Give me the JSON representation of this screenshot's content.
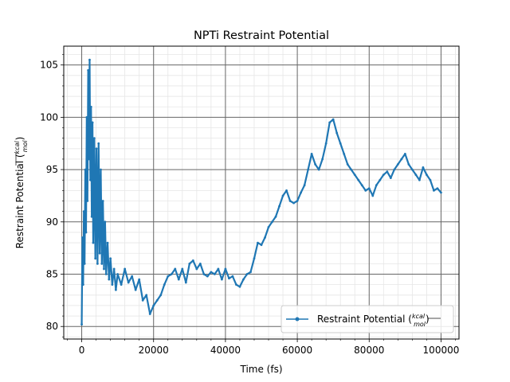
{
  "chart_data": {
    "type": "line",
    "title": "NPTi  Restraint Potential",
    "xlabel": "Time (fs)",
    "ylabel_main": "Restraint Potential (",
    "ylabel_num": "kcal",
    "ylabel_den": "mol",
    "ylabel_end": ")",
    "xlim": [
      -5000,
      105000
    ],
    "ylim": [
      78.8,
      106.8
    ],
    "x_ticks": [
      0,
      20000,
      40000,
      60000,
      80000,
      100000
    ],
    "x_tick_labels": [
      "0",
      "20000",
      "40000",
      "60000",
      "80000",
      "100000"
    ],
    "y_ticks": [
      80,
      85,
      90,
      95,
      100,
      105
    ],
    "y_tick_labels": [
      "80",
      "85",
      "90",
      "95",
      "100",
      "105"
    ],
    "grid": "major and minor",
    "legend_position": "lower-right",
    "series": [
      {
        "name_main": "Restraint Potential (",
        "name_num": "kcal",
        "name_den": "mol",
        "name_end": ")",
        "color": "#1f77b4",
        "points": [
          [
            0,
            80.2
          ],
          [
            200,
            88.5
          ],
          [
            400,
            84.0
          ],
          [
            600,
            91.0
          ],
          [
            800,
            86.0
          ],
          [
            1000,
            95.0
          ],
          [
            1200,
            89.0
          ],
          [
            1400,
            100.0
          ],
          [
            1600,
            92.0
          ],
          [
            1800,
            104.5
          ],
          [
            2000,
            96.0
          ],
          [
            2200,
            105.5
          ],
          [
            2400,
            94.0
          ],
          [
            2600,
            101.0
          ],
          [
            2800,
            90.5
          ],
          [
            3000,
            99.5
          ],
          [
            3200,
            88.0
          ],
          [
            3500,
            98.0
          ],
          [
            3800,
            86.5
          ],
          [
            4100,
            97.0
          ],
          [
            4400,
            86.0
          ],
          [
            4700,
            97.5
          ],
          [
            5000,
            87.0
          ],
          [
            5300,
            95.0
          ],
          [
            5600,
            86.0
          ],
          [
            5900,
            92.0
          ],
          [
            6200,
            85.5
          ],
          [
            6500,
            90.0
          ],
          [
            6800,
            85.0
          ],
          [
            7200,
            88.0
          ],
          [
            7600,
            84.5
          ],
          [
            8000,
            86.5
          ],
          [
            8500,
            84.0
          ],
          [
            9000,
            85.5
          ],
          [
            9500,
            83.5
          ],
          [
            10000,
            85.0
          ],
          [
            11000,
            84.0
          ],
          [
            12000,
            85.5
          ],
          [
            13000,
            84.2
          ],
          [
            14000,
            84.8
          ],
          [
            15000,
            83.5
          ],
          [
            16000,
            84.5
          ],
          [
            17000,
            82.5
          ],
          [
            18000,
            83.0
          ],
          [
            19000,
            81.2
          ],
          [
            20000,
            82.0
          ],
          [
            21000,
            82.5
          ],
          [
            22000,
            83.0
          ],
          [
            23000,
            84.0
          ],
          [
            24000,
            84.8
          ],
          [
            25000,
            85.0
          ],
          [
            26000,
            85.5
          ],
          [
            27000,
            84.5
          ],
          [
            28000,
            85.5
          ],
          [
            29000,
            84.2
          ],
          [
            30000,
            86.0
          ],
          [
            31000,
            86.3
          ],
          [
            32000,
            85.5
          ],
          [
            33000,
            86.0
          ],
          [
            34000,
            85.0
          ],
          [
            35000,
            84.8
          ],
          [
            36000,
            85.2
          ],
          [
            37000,
            85.0
          ],
          [
            38000,
            85.5
          ],
          [
            39000,
            84.5
          ],
          [
            40000,
            85.5
          ],
          [
            41000,
            84.6
          ],
          [
            42000,
            84.8
          ],
          [
            43000,
            84.0
          ],
          [
            44000,
            83.8
          ],
          [
            45000,
            84.5
          ],
          [
            46000,
            85.0
          ],
          [
            47000,
            85.2
          ],
          [
            48000,
            86.5
          ],
          [
            49000,
            88.0
          ],
          [
            50000,
            87.8
          ],
          [
            51000,
            88.5
          ],
          [
            52000,
            89.5
          ],
          [
            53000,
            90.0
          ],
          [
            54000,
            90.5
          ],
          [
            55000,
            91.5
          ],
          [
            56000,
            92.5
          ],
          [
            57000,
            93.0
          ],
          [
            58000,
            92.0
          ],
          [
            59000,
            91.8
          ],
          [
            60000,
            92.0
          ],
          [
            61000,
            92.8
          ],
          [
            62000,
            93.5
          ],
          [
            63000,
            95.0
          ],
          [
            64000,
            96.5
          ],
          [
            65000,
            95.5
          ],
          [
            66000,
            95.0
          ],
          [
            67000,
            96.0
          ],
          [
            68000,
            97.5
          ],
          [
            69000,
            99.5
          ],
          [
            70000,
            99.8
          ],
          [
            71000,
            98.5
          ],
          [
            72000,
            97.5
          ],
          [
            73000,
            96.5
          ],
          [
            74000,
            95.5
          ],
          [
            75000,
            95.0
          ],
          [
            76000,
            94.5
          ],
          [
            77000,
            94.0
          ],
          [
            78000,
            93.5
          ],
          [
            79000,
            93.0
          ],
          [
            80000,
            93.2
          ],
          [
            81000,
            92.5
          ],
          [
            82000,
            93.5
          ],
          [
            83000,
            94.0
          ],
          [
            84000,
            94.5
          ],
          [
            85000,
            94.8
          ],
          [
            86000,
            94.2
          ],
          [
            87000,
            95.0
          ],
          [
            88000,
            95.5
          ],
          [
            89000,
            96.0
          ],
          [
            90000,
            96.5
          ],
          [
            91000,
            95.5
          ],
          [
            92000,
            95.0
          ],
          [
            93000,
            94.5
          ],
          [
            94000,
            94.0
          ],
          [
            95000,
            95.2
          ],
          [
            96000,
            94.5
          ],
          [
            97000,
            94.0
          ],
          [
            98000,
            93.0
          ],
          [
            99000,
            93.2
          ],
          [
            100000,
            92.8
          ]
        ]
      }
    ]
  }
}
